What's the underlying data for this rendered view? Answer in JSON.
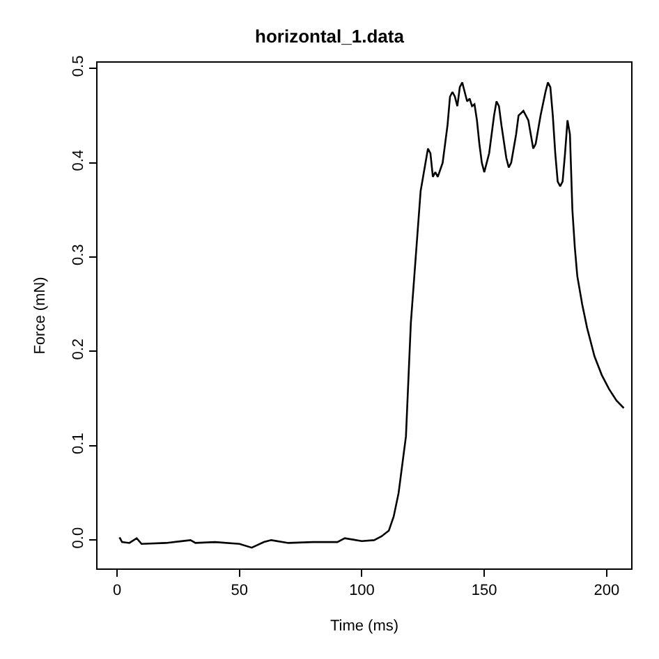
{
  "chart_data": {
    "type": "line",
    "title": "horizontal_1.data",
    "xlabel": "Time (ms)",
    "ylabel": "Force (mN)",
    "xlim": [
      -8,
      210
    ],
    "ylim": [
      -0.03,
      0.506
    ],
    "xticks": [
      0,
      50,
      100,
      150,
      200
    ],
    "yticks": [
      {
        "value": 0,
        "label": "0.0"
      },
      0.1,
      0.2,
      0.3,
      0.4,
      0.5
    ],
    "marker": "none",
    "line_style": "solid",
    "series": [
      {
        "color": "#000000",
        "x": [
          1,
          2,
          5,
          8,
          10,
          20,
          30,
          32,
          40,
          50,
          55,
          60,
          63,
          70,
          80,
          90,
          93,
          100,
          105,
          108,
          111,
          113,
          115,
          118,
          120,
          122,
          124,
          126,
          127,
          128,
          129,
          130,
          131,
          133,
          135,
          136,
          137,
          138,
          139,
          140,
          141,
          142,
          143,
          144,
          145,
          146,
          147,
          148,
          149,
          150,
          152,
          154,
          155,
          156,
          157,
          159,
          160,
          161,
          163,
          164,
          166,
          167,
          168,
          169,
          170,
          171,
          173,
          175,
          176,
          177,
          178,
          179,
          180,
          181,
          182,
          183,
          184,
          185,
          186,
          187,
          188,
          190,
          192,
          195,
          198,
          201,
          204,
          207
        ],
        "values": [
          0.003,
          -0.002,
          -0.003,
          0.002,
          -0.004,
          -0.003,
          0.0,
          -0.003,
          -0.002,
          -0.004,
          -0.008,
          -0.002,
          0.0,
          -0.003,
          -0.002,
          -0.002,
          0.002,
          -0.001,
          0.0,
          0.004,
          0.01,
          0.025,
          0.05,
          0.11,
          0.23,
          0.3,
          0.37,
          0.4,
          0.415,
          0.41,
          0.385,
          0.39,
          0.385,
          0.4,
          0.44,
          0.47,
          0.475,
          0.47,
          0.46,
          0.48,
          0.485,
          0.475,
          0.465,
          0.468,
          0.46,
          0.462,
          0.445,
          0.42,
          0.4,
          0.39,
          0.41,
          0.45,
          0.465,
          0.46,
          0.44,
          0.405,
          0.395,
          0.4,
          0.43,
          0.45,
          0.455,
          0.45,
          0.445,
          0.43,
          0.415,
          0.42,
          0.45,
          0.475,
          0.485,
          0.48,
          0.45,
          0.41,
          0.38,
          0.375,
          0.38,
          0.41,
          0.445,
          0.43,
          0.35,
          0.31,
          0.28,
          0.25,
          0.225,
          0.195,
          0.175,
          0.16,
          0.148,
          0.14
        ]
      }
    ]
  }
}
